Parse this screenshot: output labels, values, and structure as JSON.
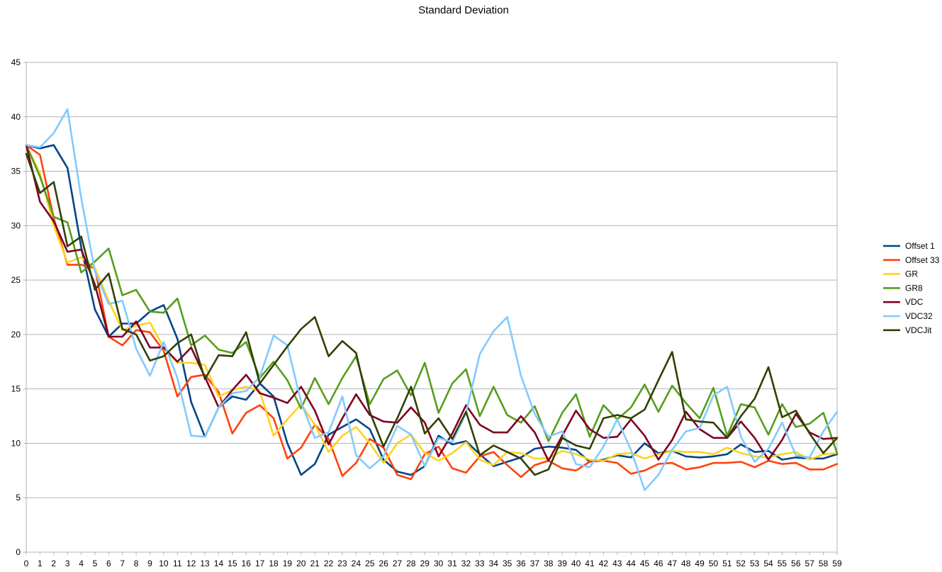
{
  "chart_data": {
    "type": "line",
    "title": "Standard Deviation",
    "xlabel": "",
    "ylabel": "",
    "ylim": [
      0,
      45
    ],
    "yticks": [
      0,
      5,
      10,
      15,
      20,
      25,
      30,
      35,
      40,
      45
    ],
    "grid": "horizontal",
    "legend_position": "right",
    "x": [
      0,
      1,
      2,
      3,
      4,
      5,
      6,
      7,
      8,
      9,
      10,
      11,
      12,
      13,
      14,
      15,
      16,
      17,
      18,
      19,
      20,
      21,
      22,
      23,
      24,
      25,
      26,
      27,
      28,
      29,
      30,
      31,
      32,
      33,
      34,
      35,
      36,
      37,
      38,
      39,
      40,
      41,
      42,
      43,
      44,
      45,
      46,
      47,
      48,
      49,
      50,
      51,
      52,
      53,
      54,
      55,
      56,
      57,
      58,
      59
    ],
    "series": [
      {
        "name": "Offset 1",
        "color": "#004586",
        "values": [
          37.4,
          37.1,
          37.4,
          35.3,
          28,
          22.3,
          19.8,
          21,
          21,
          22.1,
          22.7,
          19.6,
          13.8,
          10.6,
          13.3,
          14.3,
          14,
          15.5,
          14.3,
          10,
          7.1,
          8.1,
          10.8,
          11.5,
          12.2,
          11.3,
          8.5,
          7.4,
          7.1,
          7.9,
          10.7,
          9.9,
          10.2,
          9,
          7.9,
          8.3,
          8.7,
          9.5,
          9.7,
          9.6,
          9.4,
          8.3,
          8.5,
          8.9,
          8.7,
          10,
          9.1,
          9.3,
          8.8,
          8.7,
          8.8,
          9,
          9.9,
          9.2,
          9.3,
          8.5,
          8.7,
          8.6,
          8.6,
          9
        ]
      },
      {
        "name": "Offset 33",
        "color": "#ff420e",
        "values": [
          37.4,
          36.5,
          30.7,
          26.4,
          26.4,
          26.1,
          19.8,
          19,
          20.4,
          20.2,
          18.5,
          14.3,
          16.1,
          16.3,
          14.7,
          10.9,
          12.8,
          13.5,
          12.3,
          8.6,
          9.6,
          11.7,
          10.4,
          7,
          8.2,
          10.4,
          9.6,
          7.1,
          6.7,
          9,
          9.7,
          7.7,
          7.3,
          8.8,
          9.2,
          8,
          6.9,
          8,
          8.4,
          7.7,
          7.5,
          8.3,
          8.4,
          8.2,
          7.2,
          7.5,
          8.1,
          8.2,
          7.6,
          7.8,
          8.2,
          8.2,
          8.3,
          7.8,
          8.4,
          8.1,
          8.2,
          7.6,
          7.6,
          8.1
        ]
      },
      {
        "name": "GR",
        "color": "#ffd320",
        "values": [
          37.4,
          34.8,
          30,
          26.6,
          27.1,
          26.1,
          23.1,
          20.4,
          20.8,
          21.1,
          18.8,
          17.4,
          17.4,
          17.2,
          14.3,
          14.9,
          15.2,
          14.8,
          10.7,
          12.2,
          13.6,
          11.7,
          9.2,
          10.7,
          11.5,
          10,
          8.2,
          10,
          10.8,
          9.1,
          8.4,
          9.1,
          10.1,
          8.5,
          8,
          9.2,
          9.1,
          8.6,
          8.6,
          9.3,
          9,
          8.5,
          8.4,
          9,
          9.1,
          8.6,
          9,
          9.3,
          9.2,
          9.2,
          9,
          9.6,
          9.1,
          8.8,
          8.7,
          9,
          9.2,
          8.5,
          9,
          9.1
        ]
      },
      {
        "name": "GR8",
        "color": "#579d1c",
        "values": [
          37.4,
          34.5,
          30.8,
          30.3,
          25.7,
          26.7,
          27.9,
          23.6,
          24.1,
          22.1,
          22,
          23.3,
          19,
          19.9,
          18.6,
          18.3,
          19.3,
          16,
          17.5,
          15.8,
          13.2,
          16,
          13.6,
          16,
          18,
          13.6,
          15.9,
          16.7,
          14.4,
          17.4,
          12.8,
          15.5,
          16.8,
          12.5,
          15.2,
          12.6,
          11.9,
          13.4,
          10.2,
          12.8,
          14.5,
          10.6,
          13.5,
          12.2,
          13.3,
          15.4,
          12.9,
          15.3,
          13.7,
          12.3,
          15.1,
          10.7,
          13.6,
          13.3,
          10.8,
          13.6,
          11.5,
          11.8,
          12.8,
          9.1
        ]
      },
      {
        "name": "VDC",
        "color": "#7e0021",
        "values": [
          37.4,
          32.2,
          30.4,
          27.6,
          27.8,
          24.6,
          19.8,
          19.8,
          21.2,
          18.8,
          18.8,
          17.5,
          18.8,
          16.1,
          13.3,
          14.9,
          16.3,
          14.6,
          14.2,
          13.7,
          15.2,
          13,
          9.9,
          12.3,
          14.5,
          12.6,
          12,
          11.9,
          13.3,
          11.9,
          8.8,
          10.9,
          13.5,
          11.7,
          11,
          11,
          12.5,
          11,
          8.4,
          10.7,
          13,
          11.3,
          10.5,
          10.6,
          12.2,
          10.7,
          8.5,
          10.3,
          12.9,
          11.3,
          10.5,
          10.5,
          12,
          10.5,
          8.5,
          10.3,
          12.7,
          11,
          10.4,
          10.5
        ]
      },
      {
        "name": "VDC32",
        "color": "#83caff",
        "values": [
          37.4,
          37.2,
          38.5,
          40.7,
          32.5,
          25.8,
          22.8,
          23.1,
          18.7,
          16.2,
          19.3,
          16,
          10.7,
          10.6,
          13.3,
          14.6,
          14.8,
          16.1,
          19.9,
          19,
          13.8,
          10.5,
          11,
          14.3,
          8.9,
          7.7,
          8.8,
          11.6,
          10.8,
          7.9,
          10.5,
          10.1,
          12.8,
          18.2,
          20.3,
          21.6,
          16.2,
          12.7,
          10.6,
          11.1,
          8.1,
          7.8,
          9.7,
          12.2,
          9.4,
          5.7,
          7.1,
          9.4,
          11.1,
          11.4,
          14.4,
          15.2,
          10.6,
          8.3,
          9.5,
          11.9,
          8.9,
          8.7,
          11.1,
          12.9
        ]
      },
      {
        "name": "VDCJit",
        "color": "#314004",
        "values": [
          36.6,
          33,
          34,
          28.1,
          29,
          24.1,
          25.6,
          20.5,
          20,
          17.6,
          18,
          19.2,
          20,
          15.9,
          18.1,
          18,
          20.2,
          15.5,
          17.2,
          18.9,
          20.5,
          21.6,
          18,
          19.4,
          18.3,
          12.9,
          9.7,
          12.3,
          15.2,
          10.9,
          12.3,
          10.4,
          12.9,
          8.9,
          9.8,
          9.2,
          8.6,
          7.1,
          7.6,
          10.5,
          9.8,
          9.5,
          12.3,
          12.6,
          12.3,
          13.1,
          15.8,
          18.4,
          12.2,
          12,
          11.9,
          10.5,
          12.5,
          14.1,
          17,
          12.4,
          13,
          10.9,
          9.1,
          10.5
        ]
      }
    ]
  }
}
